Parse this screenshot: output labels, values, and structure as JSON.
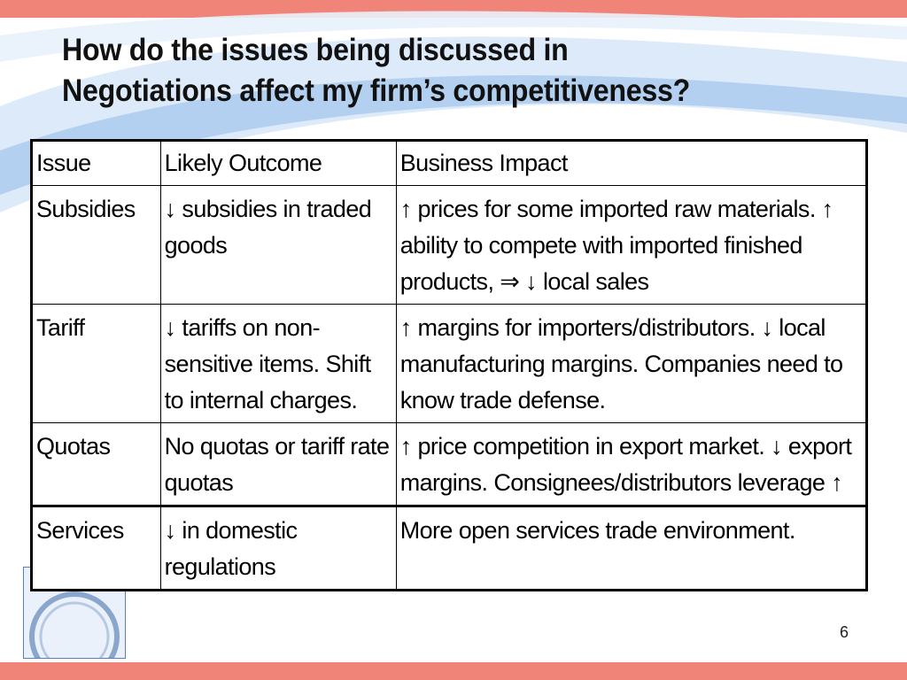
{
  "slide": {
    "title_line1": "How do the issues being discussed in",
    "title_line2": "Negotiations affect my firm’s competitiveness?",
    "page_number": "6"
  },
  "table": {
    "headers": [
      "Issue",
      "Likely Outcome",
      "Business Impact"
    ],
    "rows": [
      {
        "issue": "Subsidies",
        "outcome": "↓ subsidies in traded goods",
        "impact": "↑ prices for some imported raw materials. ↑ ability to compete with imported finished products, ⇒ ↓ local sales"
      },
      {
        "issue": "Tariff",
        "outcome": "↓ tariffs on non-sensitive items. Shift to internal charges.",
        "impact": "↑ margins for importers/distributors. ↓ local manufacturing margins. Companies need to know trade defense."
      },
      {
        "issue": "Quotas",
        "outcome": "No quotas or tariff rate quotas",
        "impact": "↑ price competition in export market. ↓ export margins. Consignees/distributors leverage ↑"
      },
      {
        "issue": "Services",
        "outcome": "↓ in domestic regulations",
        "impact": "More open services trade environment."
      }
    ]
  },
  "colors": {
    "band": "#f08478",
    "swoosh": "#9fc2ea"
  }
}
